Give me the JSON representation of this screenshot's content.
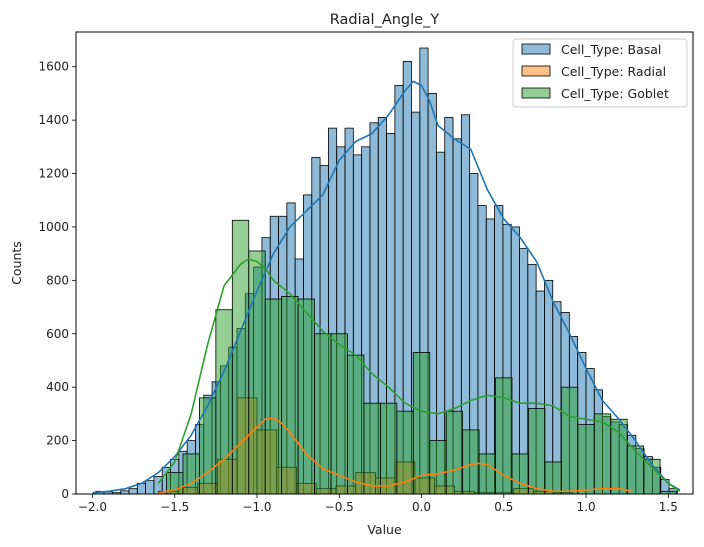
{
  "chart_data": {
    "type": "histogram",
    "title": "Radial_Angle_Y",
    "xlabel": "Value",
    "ylabel": "Counts",
    "xlim": [
      -2.1,
      1.65
    ],
    "ylim": [
      0,
      1730
    ],
    "xticks": [
      -2.0,
      -1.5,
      -1.0,
      -0.5,
      0.0,
      0.5,
      1.0,
      1.5
    ],
    "xtick_labels": [
      "−2.0",
      "−1.5",
      "−1.0",
      "−0.5",
      "0.0",
      "0.5",
      "1.0",
      "1.5"
    ],
    "yticks": [
      0,
      200,
      400,
      600,
      800,
      1000,
      1200,
      1400,
      1600
    ],
    "ytick_labels": [
      "0",
      "200",
      "400",
      "600",
      "800",
      "1000",
      "1200",
      "1400",
      "1600"
    ],
    "legend_position": "top-right",
    "series": [
      {
        "name": "Cell_Type: Basal",
        "color": "#1f77b4",
        "bin_start": -1.98,
        "bin_width": 0.0505,
        "counts": [
          10,
          8,
          5,
          12,
          20,
          40,
          50,
          65,
          100,
          130,
          160,
          200,
          260,
          370,
          420,
          480,
          550,
          620,
          750,
          850,
          960,
          1040,
          1040,
          1090,
          880,
          1120,
          1260,
          1230,
          1370,
          1300,
          1370,
          1270,
          1300,
          1390,
          1410,
          1350,
          1530,
          1620,
          1430,
          1670,
          1500,
          1280,
          1410,
          1330,
          1420,
          1200,
          1080,
          1030,
          1080,
          1010,
          1000,
          920,
          860,
          760,
          800,
          720,
          680,
          590,
          530,
          470,
          390,
          290,
          270,
          260,
          220,
          170,
          140,
          100,
          55,
          20
        ],
        "kde_x": [
          -2.0,
          -1.9,
          -1.8,
          -1.7,
          -1.6,
          -1.5,
          -1.4,
          -1.3,
          -1.2,
          -1.1,
          -1.0,
          -0.9,
          -0.8,
          -0.7,
          -0.6,
          -0.5,
          -0.4,
          -0.3,
          -0.2,
          -0.1,
          -0.05,
          0.0,
          0.05,
          0.1,
          0.2,
          0.3,
          0.4,
          0.5,
          0.6,
          0.7,
          0.8,
          0.9,
          1.0,
          1.1,
          1.2,
          1.3,
          1.4,
          1.5,
          1.57
        ],
        "kde_y": [
          5,
          10,
          20,
          40,
          80,
          140,
          220,
          330,
          460,
          610,
          760,
          900,
          1000,
          1060,
          1120,
          1250,
          1320,
          1350,
          1420,
          1510,
          1545,
          1530,
          1470,
          1380,
          1330,
          1290,
          1140,
          1030,
          960,
          870,
          720,
          600,
          470,
          350,
          280,
          200,
          110,
          40,
          15
        ]
      },
      {
        "name": "Cell_Type: Radial",
        "color": "#ff7f0e",
        "bin_start": -1.6,
        "bin_width": 0.12,
        "counts": [
          10,
          25,
          40,
          130,
          360,
          240,
          100,
          40,
          20,
          30,
          80,
          60,
          120,
          60,
          30,
          10,
          5,
          5,
          20,
          10,
          5
        ],
        "kde_x": [
          -1.6,
          -1.5,
          -1.4,
          -1.3,
          -1.2,
          -1.1,
          -1.0,
          -0.95,
          -0.9,
          -0.85,
          -0.8,
          -0.7,
          -0.6,
          -0.5,
          -0.4,
          -0.3,
          -0.2,
          -0.1,
          0.0,
          0.1,
          0.2,
          0.3,
          0.35,
          0.4,
          0.5,
          0.6,
          0.7,
          0.8,
          0.9,
          1.0,
          1.1,
          1.2,
          1.28
        ],
        "kde_y": [
          5,
          15,
          40,
          80,
          130,
          190,
          250,
          280,
          285,
          265,
          230,
          150,
          95,
          70,
          45,
          30,
          30,
          45,
          70,
          75,
          90,
          110,
          115,
          110,
          70,
          40,
          20,
          10,
          10,
          15,
          20,
          20,
          10
        ]
      },
      {
        "name": "Cell_Type: Goblet",
        "color": "#2ca02c",
        "bin_start": -1.55,
        "bin_width": 0.1,
        "counts": [
          80,
          150,
          360,
          690,
          1025,
          910,
          730,
          740,
          730,
          600,
          600,
          520,
          340,
          340,
          310,
          530,
          200,
          310,
          240,
          150,
          435,
          150,
          320,
          120,
          400,
          260,
          300,
          280,
          180,
          130,
          10
        ],
        "kde_x": [
          -1.6,
          -1.5,
          -1.4,
          -1.3,
          -1.2,
          -1.1,
          -1.05,
          -1.0,
          -0.95,
          -0.9,
          -0.8,
          -0.7,
          -0.6,
          -0.5,
          -0.4,
          -0.3,
          -0.2,
          -0.1,
          0.0,
          0.1,
          0.2,
          0.3,
          0.4,
          0.5,
          0.6,
          0.7,
          0.8,
          0.9,
          1.0,
          1.1,
          1.2,
          1.3,
          1.4,
          1.5,
          1.57
        ],
        "kde_y": [
          40,
          120,
          300,
          560,
          780,
          860,
          880,
          870,
          845,
          800,
          750,
          680,
          610,
          560,
          520,
          450,
          400,
          340,
          310,
          300,
          320,
          350,
          370,
          360,
          340,
          340,
          330,
          290,
          280,
          270,
          230,
          160,
          100,
          40,
          10
        ]
      }
    ]
  }
}
